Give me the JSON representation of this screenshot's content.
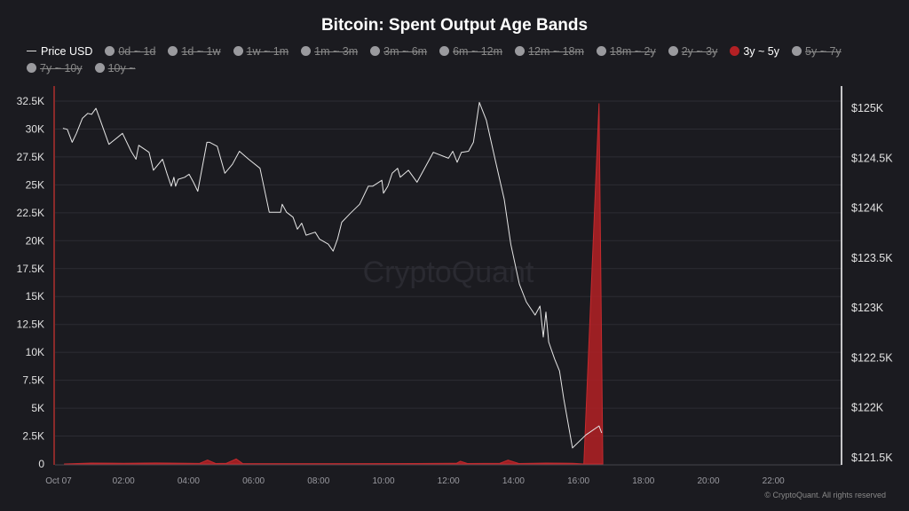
{
  "chart_data": {
    "type": "area",
    "title": "Bitcoin: Spent Output Age Bands",
    "legend": [
      {
        "label": "Price USD",
        "active": true,
        "kind": "line"
      },
      {
        "label": "0d ~ 1d",
        "active": false
      },
      {
        "label": "1d ~ 1w",
        "active": false
      },
      {
        "label": "1w ~ 1m",
        "active": false
      },
      {
        "label": "1m ~ 3m",
        "active": false
      },
      {
        "label": "3m ~ 6m",
        "active": false
      },
      {
        "label": "6m ~ 12m",
        "active": false
      },
      {
        "label": "12m ~ 18m",
        "active": false
      },
      {
        "label": "18m ~ 2y",
        "active": false
      },
      {
        "label": "2y ~ 3y",
        "active": false
      },
      {
        "label": "3y ~ 5y",
        "active": true,
        "color": "#b32024"
      },
      {
        "label": "5y ~ 7y",
        "active": false
      },
      {
        "label": "7y ~ 10y",
        "active": false
      },
      {
        "label": "10y ~",
        "active": false
      }
    ],
    "legend_placement": "top-left",
    "x_ticks": [
      "Oct 07",
      "02:00",
      "04:00",
      "06:00",
      "08:00",
      "10:00",
      "12:00",
      "14:00",
      "16:00",
      "18:00",
      "20:00",
      "22:00"
    ],
    "xlim": [
      "00:00",
      "24:00"
    ],
    "y_left_ticks": [
      "0",
      "2.5K",
      "5K",
      "7.5K",
      "10K",
      "12.5K",
      "15K",
      "17.5K",
      "20K",
      "22.5K",
      "25K",
      "27.5K",
      "30K",
      "32.5K"
    ],
    "y_left_lim": [
      0,
      32500
    ],
    "y_right_ticks": [
      "$121.5K",
      "$122K",
      "$122.5K",
      "$123K",
      "$123.5K",
      "$124K",
      "$124.5K",
      "$125K"
    ],
    "y_right_lim": [
      121500,
      125000
    ],
    "grid": true,
    "colors": {
      "band": "#b32024",
      "price": "#e6e6e6",
      "axis_left": "#8a2a2a",
      "axis_right": "#ffffff"
    },
    "series": [
      {
        "name": "3y ~ 5y",
        "axis": "left",
        "points": [
          [
            "00:10",
            0
          ],
          [
            "01:00",
            80
          ],
          [
            "02:00",
            60
          ],
          [
            "03:00",
            90
          ],
          [
            "04:20",
            50
          ],
          [
            "04:35",
            350
          ],
          [
            "04:50",
            40
          ],
          [
            "05:10",
            60
          ],
          [
            "05:28",
            450
          ],
          [
            "05:40",
            40
          ],
          [
            "07:00",
            30
          ],
          [
            "09:00",
            30
          ],
          [
            "11:00",
            40
          ],
          [
            "12:15",
            60
          ],
          [
            "12:22",
            250
          ],
          [
            "12:35",
            40
          ],
          [
            "13:35",
            60
          ],
          [
            "13:50",
            350
          ],
          [
            "14:10",
            40
          ],
          [
            "15:00",
            80
          ],
          [
            "15:50",
            60
          ],
          [
            "16:10",
            0
          ],
          [
            "16:38",
            32300
          ],
          [
            "16:45",
            0
          ]
        ]
      },
      {
        "name": "Price USD",
        "axis": "right",
        "points": [
          [
            "00:08",
            124790
          ],
          [
            "00:16",
            124780
          ],
          [
            "00:25",
            124650
          ],
          [
            "00:33",
            124740
          ],
          [
            "00:44",
            124890
          ],
          [
            "00:54",
            124940
          ],
          [
            "01:01",
            124930
          ],
          [
            "01:09",
            124990
          ],
          [
            "01:17",
            124870
          ],
          [
            "01:33",
            124630
          ],
          [
            "01:58",
            124740
          ],
          [
            "02:14",
            124560
          ],
          [
            "02:23",
            124480
          ],
          [
            "02:28",
            124620
          ],
          [
            "02:39",
            124580
          ],
          [
            "02:47",
            124550
          ],
          [
            "02:55",
            124370
          ],
          [
            "03:12",
            124480
          ],
          [
            "03:20",
            124340
          ],
          [
            "03:28",
            124210
          ],
          [
            "03:33",
            124300
          ],
          [
            "03:36",
            124210
          ],
          [
            "03:41",
            124280
          ],
          [
            "03:53",
            124300
          ],
          [
            "04:01",
            124330
          ],
          [
            "04:09",
            124250
          ],
          [
            "04:17",
            124160
          ],
          [
            "04:34",
            124650
          ],
          [
            "04:39",
            124650
          ],
          [
            "04:53",
            124610
          ],
          [
            "05:07",
            124340
          ],
          [
            "05:21",
            124430
          ],
          [
            "05:34",
            124560
          ],
          [
            "05:51",
            124480
          ],
          [
            "06:12",
            124390
          ],
          [
            "06:29",
            123950
          ],
          [
            "06:50",
            123950
          ],
          [
            "06:53",
            124030
          ],
          [
            "07:01",
            123950
          ],
          [
            "07:13",
            123900
          ],
          [
            "07:21",
            123780
          ],
          [
            "07:29",
            123840
          ],
          [
            "07:37",
            123720
          ],
          [
            "07:54",
            123750
          ],
          [
            "08:02",
            123680
          ],
          [
            "08:18",
            123630
          ],
          [
            "08:27",
            123560
          ],
          [
            "08:35",
            123680
          ],
          [
            "08:43",
            123850
          ],
          [
            "08:59",
            123940
          ],
          [
            "09:16",
            124030
          ],
          [
            "09:32",
            124210
          ],
          [
            "09:40",
            124210
          ],
          [
            "09:57",
            124270
          ],
          [
            "10:00",
            124140
          ],
          [
            "10:08",
            124210
          ],
          [
            "10:16",
            124340
          ],
          [
            "10:26",
            124390
          ],
          [
            "10:31",
            124300
          ],
          [
            "10:46",
            124370
          ],
          [
            "11:02",
            124250
          ],
          [
            "11:32",
            124550
          ],
          [
            "12:00",
            124490
          ],
          [
            "12:08",
            124560
          ],
          [
            "12:16",
            124450
          ],
          [
            "12:24",
            124550
          ],
          [
            "12:37",
            124560
          ],
          [
            "12:46",
            124650
          ],
          [
            "12:57",
            125050
          ],
          [
            "13:10",
            124870
          ],
          [
            "13:26",
            124480
          ],
          [
            "13:43",
            124080
          ],
          [
            "13:55",
            123630
          ],
          [
            "14:11",
            123230
          ],
          [
            "14:24",
            123050
          ],
          [
            "14:40",
            122920
          ],
          [
            "14:49",
            123010
          ],
          [
            "14:55",
            122700
          ],
          [
            "15:00",
            122950
          ],
          [
            "15:05",
            122650
          ],
          [
            "15:16",
            122480
          ],
          [
            "15:25",
            122360
          ],
          [
            "15:33",
            122080
          ],
          [
            "15:49",
            121590
          ],
          [
            "16:14",
            121720
          ],
          [
            "16:38",
            121810
          ],
          [
            "16:43",
            121740
          ]
        ]
      }
    ],
    "watermark": "CryptoQuant"
  },
  "footer": {
    "copyright": "© CryptoQuant. All rights reserved"
  }
}
